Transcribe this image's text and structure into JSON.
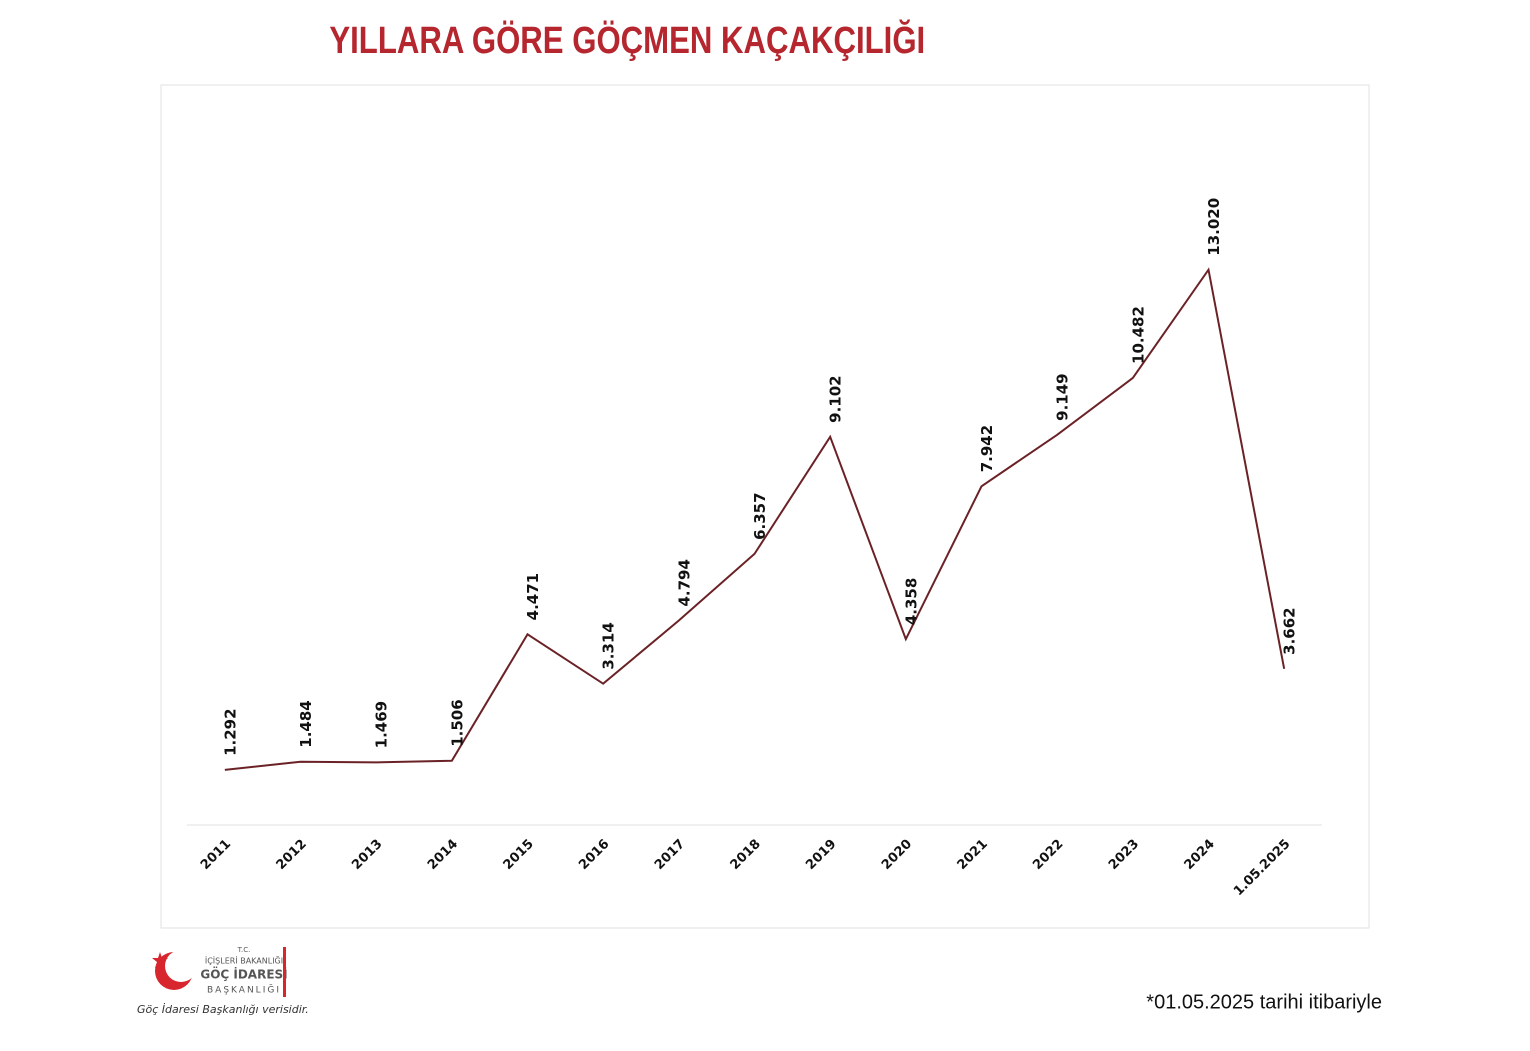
{
  "chart_data": {
    "type": "line",
    "title": "YILLARA GÖRE GÖÇMEN KAÇAKÇILIĞI",
    "categories": [
      "2011",
      "2012",
      "2013",
      "2014",
      "2015",
      "2016",
      "2017",
      "2018",
      "2019",
      "2020",
      "2021",
      "2022",
      "2023",
      "2024",
      "1.05.2025"
    ],
    "series": [
      {
        "color": "#6b2226",
        "values": [
          1292,
          1484,
          1469,
          1506,
          4471,
          3314,
          4794,
          6357,
          9102,
          4358,
          7942,
          9149,
          10482,
          13020,
          3662
        ],
        "value_labels": [
          "1.292",
          "1.484",
          "1.469",
          "1.506",
          "4.471",
          "3.314",
          "4.794",
          "6.357",
          "9.102",
          "4.358",
          "7.942",
          "9.149",
          "10.482",
          "13.020",
          "3.662"
        ]
      }
    ],
    "ylim": [
      0,
      17000
    ],
    "logo": [
      "T.C.",
      "İÇİŞLERİ BAKANLIĞI",
      "GÖÇ İDARESİ",
      "BAŞKANLIĞI"
    ],
    "source": "Göç İdaresi Başkanlığı verisidir.",
    "note": "*01.05.2025 tarihi itibariyle"
  }
}
